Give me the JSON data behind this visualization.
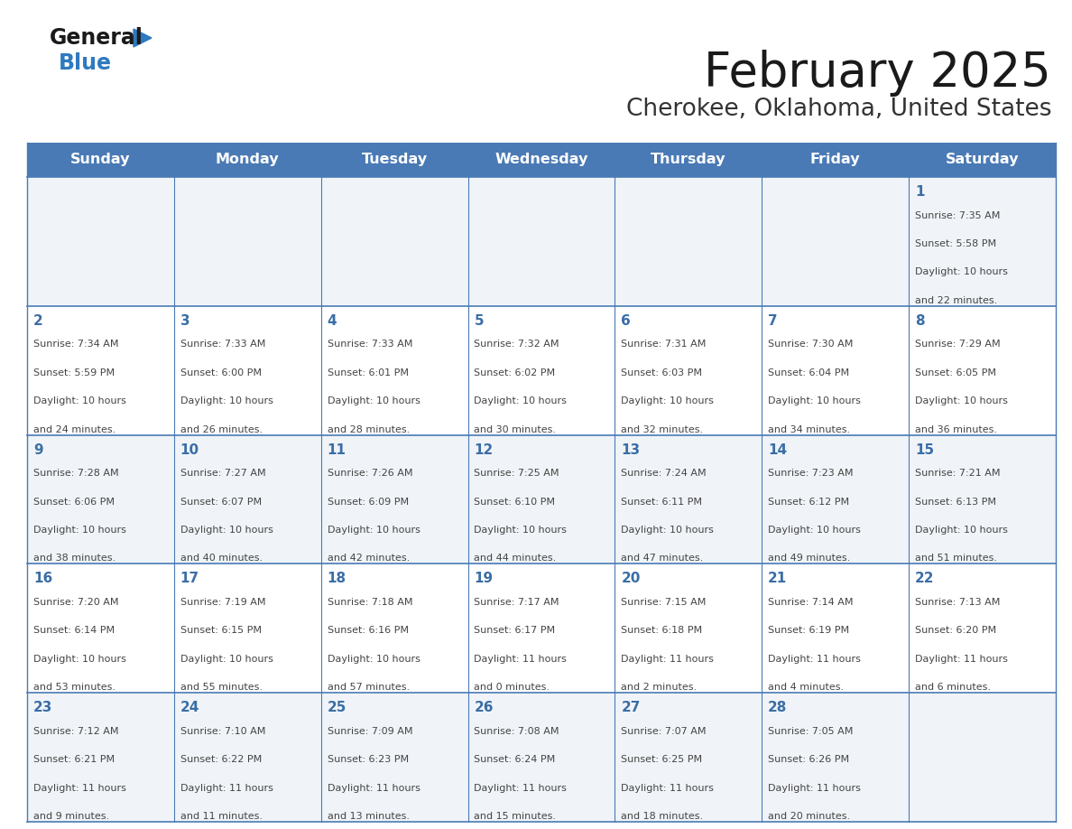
{
  "title": "February 2025",
  "subtitle": "Cherokee, Oklahoma, United States",
  "header_color": "#4a7ab5",
  "header_text_color": "#ffffff",
  "days_of_week": [
    "Sunday",
    "Monday",
    "Tuesday",
    "Wednesday",
    "Thursday",
    "Friday",
    "Saturday"
  ],
  "grid_line_color": "#4a7ab5",
  "row_colors": [
    "#f0f4f8",
    "#ffffff",
    "#f0f4f8",
    "#ffffff",
    "#f0f4f8"
  ],
  "day_number_color": "#3a6ea5",
  "text_color": "#444444",
  "calendar_data": [
    [
      {
        "day": "",
        "info": ""
      },
      {
        "day": "",
        "info": ""
      },
      {
        "day": "",
        "info": ""
      },
      {
        "day": "",
        "info": ""
      },
      {
        "day": "",
        "info": ""
      },
      {
        "day": "",
        "info": ""
      },
      {
        "day": "1",
        "info": "Sunrise: 7:35 AM\nSunset: 5:58 PM\nDaylight: 10 hours\nand 22 minutes."
      }
    ],
    [
      {
        "day": "2",
        "info": "Sunrise: 7:34 AM\nSunset: 5:59 PM\nDaylight: 10 hours\nand 24 minutes."
      },
      {
        "day": "3",
        "info": "Sunrise: 7:33 AM\nSunset: 6:00 PM\nDaylight: 10 hours\nand 26 minutes."
      },
      {
        "day": "4",
        "info": "Sunrise: 7:33 AM\nSunset: 6:01 PM\nDaylight: 10 hours\nand 28 minutes."
      },
      {
        "day": "5",
        "info": "Sunrise: 7:32 AM\nSunset: 6:02 PM\nDaylight: 10 hours\nand 30 minutes."
      },
      {
        "day": "6",
        "info": "Sunrise: 7:31 AM\nSunset: 6:03 PM\nDaylight: 10 hours\nand 32 minutes."
      },
      {
        "day": "7",
        "info": "Sunrise: 7:30 AM\nSunset: 6:04 PM\nDaylight: 10 hours\nand 34 minutes."
      },
      {
        "day": "8",
        "info": "Sunrise: 7:29 AM\nSunset: 6:05 PM\nDaylight: 10 hours\nand 36 minutes."
      }
    ],
    [
      {
        "day": "9",
        "info": "Sunrise: 7:28 AM\nSunset: 6:06 PM\nDaylight: 10 hours\nand 38 minutes."
      },
      {
        "day": "10",
        "info": "Sunrise: 7:27 AM\nSunset: 6:07 PM\nDaylight: 10 hours\nand 40 minutes."
      },
      {
        "day": "11",
        "info": "Sunrise: 7:26 AM\nSunset: 6:09 PM\nDaylight: 10 hours\nand 42 minutes."
      },
      {
        "day": "12",
        "info": "Sunrise: 7:25 AM\nSunset: 6:10 PM\nDaylight: 10 hours\nand 44 minutes."
      },
      {
        "day": "13",
        "info": "Sunrise: 7:24 AM\nSunset: 6:11 PM\nDaylight: 10 hours\nand 47 minutes."
      },
      {
        "day": "14",
        "info": "Sunrise: 7:23 AM\nSunset: 6:12 PM\nDaylight: 10 hours\nand 49 minutes."
      },
      {
        "day": "15",
        "info": "Sunrise: 7:21 AM\nSunset: 6:13 PM\nDaylight: 10 hours\nand 51 minutes."
      }
    ],
    [
      {
        "day": "16",
        "info": "Sunrise: 7:20 AM\nSunset: 6:14 PM\nDaylight: 10 hours\nand 53 minutes."
      },
      {
        "day": "17",
        "info": "Sunrise: 7:19 AM\nSunset: 6:15 PM\nDaylight: 10 hours\nand 55 minutes."
      },
      {
        "day": "18",
        "info": "Sunrise: 7:18 AM\nSunset: 6:16 PM\nDaylight: 10 hours\nand 57 minutes."
      },
      {
        "day": "19",
        "info": "Sunrise: 7:17 AM\nSunset: 6:17 PM\nDaylight: 11 hours\nand 0 minutes."
      },
      {
        "day": "20",
        "info": "Sunrise: 7:15 AM\nSunset: 6:18 PM\nDaylight: 11 hours\nand 2 minutes."
      },
      {
        "day": "21",
        "info": "Sunrise: 7:14 AM\nSunset: 6:19 PM\nDaylight: 11 hours\nand 4 minutes."
      },
      {
        "day": "22",
        "info": "Sunrise: 7:13 AM\nSunset: 6:20 PM\nDaylight: 11 hours\nand 6 minutes."
      }
    ],
    [
      {
        "day": "23",
        "info": "Sunrise: 7:12 AM\nSunset: 6:21 PM\nDaylight: 11 hours\nand 9 minutes."
      },
      {
        "day": "24",
        "info": "Sunrise: 7:10 AM\nSunset: 6:22 PM\nDaylight: 11 hours\nand 11 minutes."
      },
      {
        "day": "25",
        "info": "Sunrise: 7:09 AM\nSunset: 6:23 PM\nDaylight: 11 hours\nand 13 minutes."
      },
      {
        "day": "26",
        "info": "Sunrise: 7:08 AM\nSunset: 6:24 PM\nDaylight: 11 hours\nand 15 minutes."
      },
      {
        "day": "27",
        "info": "Sunrise: 7:07 AM\nSunset: 6:25 PM\nDaylight: 11 hours\nand 18 minutes."
      },
      {
        "day": "28",
        "info": "Sunrise: 7:05 AM\nSunset: 6:26 PM\nDaylight: 11 hours\nand 20 minutes."
      },
      {
        "day": "",
        "info": ""
      }
    ]
  ],
  "logo_color_general": "#1a1a1a",
  "logo_color_blue": "#2e7abf",
  "logo_triangle_color": "#2e7abf",
  "fig_width": 11.88,
  "fig_height": 9.18,
  "dpi": 100
}
